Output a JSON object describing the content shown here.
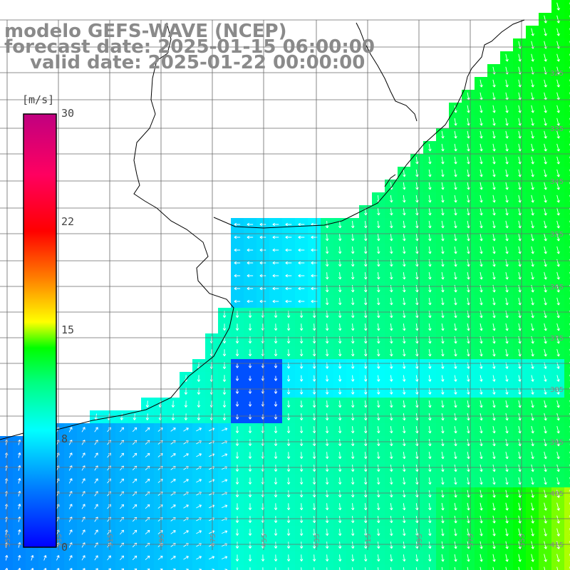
{
  "header": {
    "model": "modelo GEFS-WAVE (NCEP)",
    "forecast": "forecast date: 2025-01-15 06:00:00",
    "valid": "valid date: 2025-01-22 00:00:00"
  },
  "colorbar": {
    "unit": "[m/s]",
    "ticks": [
      "30",
      "22",
      "15",
      "8",
      "0"
    ],
    "colors": [
      "#0000ff",
      "#0080ff",
      "#00e0ff",
      "#00ff80",
      "#00ff00",
      "#80ff00",
      "#ffff00",
      "#ff8000",
      "#ff0000",
      "#ff0060",
      "#c00080"
    ]
  },
  "grid": {
    "lat_labels": [
      "325",
      "335",
      "345",
      "355",
      "365",
      "375",
      "385",
      "395",
      "405",
      "415"
    ],
    "lon_labels": [
      "555",
      "535",
      "515",
      "495",
      "475",
      "455",
      "435",
      "415",
      "395",
      "375",
      "355"
    ]
  },
  "colors": {
    "land": "#ffffff",
    "coast": "#000000",
    "grid": "#6a6a6a",
    "arrow": "#ffffff"
  }
}
